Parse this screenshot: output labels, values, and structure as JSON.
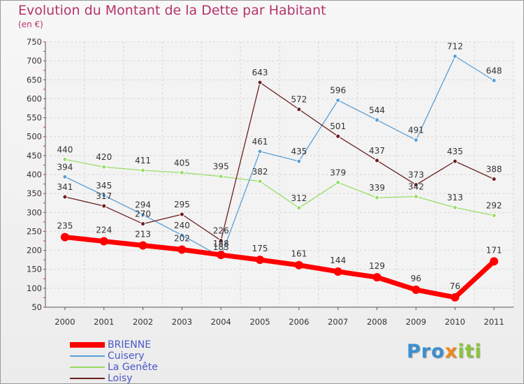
{
  "chart_data": {
    "type": "line",
    "title": "Evolution du Montant de la Dette par Habitant",
    "subtitle": "(en €)",
    "xlabel": "",
    "ylabel": "",
    "categories": [
      "2000",
      "2001",
      "2002",
      "2003",
      "2004",
      "2005",
      "2006",
      "2007",
      "2008",
      "2009",
      "2010",
      "2011"
    ],
    "ylim": [
      50,
      750
    ],
    "yticks": [
      50,
      100,
      150,
      200,
      250,
      300,
      350,
      400,
      450,
      500,
      550,
      600,
      650,
      700,
      750
    ],
    "grid": true,
    "legend_position": "bottom-left",
    "series": [
      {
        "name": "BRIENNE",
        "color": "#ff0000",
        "values": [
          235,
          224,
          213,
          202,
          188,
          175,
          161,
          144,
          129,
          96,
          76,
          171
        ]
      },
      {
        "name": "Cuisery",
        "color": "#5a9fd6",
        "values": [
          394,
          345,
          294,
          240,
          183,
          461,
          435,
          596,
          544,
          491,
          712,
          648
        ]
      },
      {
        "name": "La Genête",
        "color": "#99dd66",
        "values": [
          440,
          420,
          411,
          405,
          395,
          382,
          312,
          379,
          339,
          342,
          313,
          292
        ]
      },
      {
        "name": "Loisy",
        "color": "#6b1f1f",
        "values": [
          341,
          317,
          270,
          295,
          226,
          643,
          572,
          501,
          437,
          373,
          435,
          388
        ]
      }
    ]
  },
  "branding": {
    "logo_text": "Proxiti",
    "logo_letters": [
      {
        "ch": "P",
        "color": "#3b8fd1"
      },
      {
        "ch": "r",
        "color": "#3b8fd1"
      },
      {
        "ch": "o",
        "color": "#3b8fd1"
      },
      {
        "ch": "x",
        "color": "#f08a1c"
      },
      {
        "ch": "i",
        "color": "#8cc43c"
      },
      {
        "ch": "t",
        "color": "#8cc43c"
      },
      {
        "ch": "i",
        "color": "#8cc43c"
      }
    ]
  }
}
